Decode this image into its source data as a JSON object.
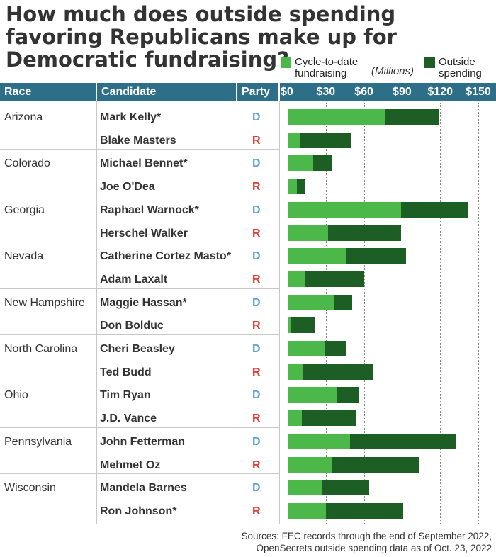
{
  "title": "How much does outside spending favoring Republicans make up for Democratic fundraising?",
  "legend": {
    "fundraising": "Cycle-to-date fundraising",
    "outside": "Outside spending",
    "units": "(Millions)"
  },
  "columns": {
    "race": "Race",
    "candidate": "Candidate",
    "party": "Party"
  },
  "colors": {
    "fundraising": "#4cb84a",
    "outside": "#1c5e24",
    "D": "#5ba4d6",
    "R": "#e03c31",
    "header": "#2d6e88"
  },
  "chart_data": {
    "type": "bar",
    "orientation": "horizontal",
    "stacked": true,
    "title": "How much does outside spending favoring Republicans make up for Democratic fundraising?",
    "units": "(Millions)",
    "xlim": [
      0,
      150
    ],
    "xticks": [
      "$0",
      "$30",
      "$60",
      "$90",
      "$120",
      "$150"
    ],
    "grid": true,
    "legend_position": "top-right",
    "series_names": [
      "Cycle-to-date fundraising",
      "Outside spending"
    ],
    "rows": [
      {
        "race": "Arizona",
        "candidate": "Mark Kelly*",
        "party": "D",
        "fundraising": 77,
        "outside": 42
      },
      {
        "race": "",
        "candidate": "Blake Masters",
        "party": "R",
        "fundraising": 10,
        "outside": 40
      },
      {
        "race": "Colorado",
        "candidate": "Michael Bennet*",
        "party": "D",
        "fundraising": 20,
        "outside": 15
      },
      {
        "race": "",
        "candidate": "Joe O'Dea",
        "party": "R",
        "fundraising": 7,
        "outside": 7
      },
      {
        "race": "Georgia",
        "candidate": "Raphael Warnock*",
        "party": "D",
        "fundraising": 89,
        "outside": 53
      },
      {
        "race": "",
        "candidate": "Herschel Walker",
        "party": "R",
        "fundraising": 32,
        "outside": 57
      },
      {
        "race": "Nevada",
        "candidate": "Catherine Cortez Masto*",
        "party": "D",
        "fundraising": 46,
        "outside": 47
      },
      {
        "race": "",
        "candidate": "Adam Laxalt",
        "party": "R",
        "fundraising": 14,
        "outside": 46
      },
      {
        "race": "New Hampshire",
        "candidate": "Maggie Hassan*",
        "party": "D",
        "fundraising": 37,
        "outside": 14
      },
      {
        "race": "",
        "candidate": "Don Bolduc",
        "party": "R",
        "fundraising": 2,
        "outside": 20
      },
      {
        "race": "North Carolina",
        "candidate": "Cheri Beasley",
        "party": "D",
        "fundraising": 29,
        "outside": 17
      },
      {
        "race": "",
        "candidate": "Ted Budd",
        "party": "R",
        "fundraising": 12,
        "outside": 55
      },
      {
        "race": "Ohio",
        "candidate": "Tim Ryan",
        "party": "D",
        "fundraising": 39,
        "outside": 17
      },
      {
        "race": "",
        "candidate": "J.D. Vance",
        "party": "R",
        "fundraising": 11,
        "outside": 43
      },
      {
        "race": "Pennsylvania",
        "candidate": "John Fetterman",
        "party": "D",
        "fundraising": 49,
        "outside": 83
      },
      {
        "race": "",
        "candidate": "Mehmet Oz",
        "party": "R",
        "fundraising": 35,
        "outside": 68
      },
      {
        "race": "Wisconsin",
        "candidate": "Mandela Barnes",
        "party": "D",
        "fundraising": 27,
        "outside": 37
      },
      {
        "race": "",
        "candidate": "Ron Johnson*",
        "party": "R",
        "fundraising": 30,
        "outside": 61
      }
    ]
  },
  "sources": {
    "line1": "Sources: FEC records through the end of September 2022,",
    "line2": "OpenSecrets outside spending data as of Oct. 23, 2022"
  }
}
